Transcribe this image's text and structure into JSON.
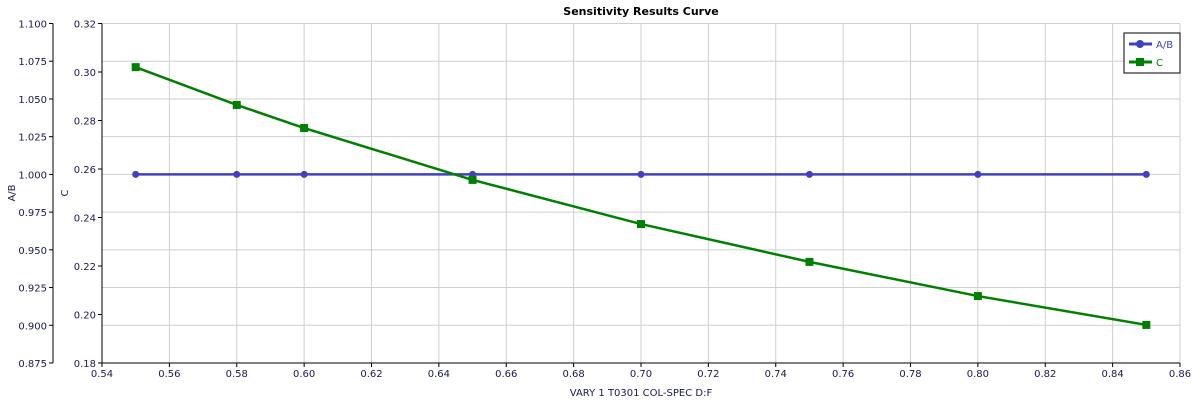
{
  "chart_data": {
    "type": "line",
    "title": "Sensitivity Results Curve",
    "xlabel": "VARY  1 T0301 COL-SPEC D:F",
    "xlim": [
      0.54,
      0.86
    ],
    "xticks": [
      "0.54",
      "0.56",
      "0.58",
      "0.60",
      "0.62",
      "0.64",
      "0.66",
      "0.68",
      "0.70",
      "0.72",
      "0.74",
      "0.76",
      "0.78",
      "0.80",
      "0.82",
      "0.84",
      "0.86"
    ],
    "y_axes": [
      {
        "label": "A/B",
        "ylim": [
          0.875,
          1.1
        ],
        "ticks": [
          "0.875",
          "0.900",
          "0.925",
          "0.950",
          "0.975",
          "1.000",
          "1.025",
          "1.050",
          "1.075",
          "1.100"
        ]
      },
      {
        "label": "C",
        "ylim": [
          0.18,
          0.32
        ],
        "ticks": [
          "0.18",
          "0.20",
          "0.22",
          "0.24",
          "0.26",
          "0.28",
          "0.30",
          "0.32"
        ]
      }
    ],
    "x": [
      0.55,
      0.58,
      0.6,
      0.65,
      0.7,
      0.75,
      0.8,
      0.85
    ],
    "series": [
      {
        "name": "A/B",
        "axis": 0,
        "color": "#4040c0",
        "marker": "circle",
        "values": [
          1.0,
          1.0,
          1.0,
          1.0,
          1.0,
          1.0,
          1.0,
          1.0
        ]
      },
      {
        "name": "C",
        "axis": 1,
        "color": "#008000",
        "marker": "square",
        "values": [
          0.302,
          0.2864,
          0.2769,
          0.2555,
          0.2373,
          0.2217,
          0.2076,
          0.1957
        ]
      }
    ],
    "grid": true,
    "legend": "top-right"
  }
}
